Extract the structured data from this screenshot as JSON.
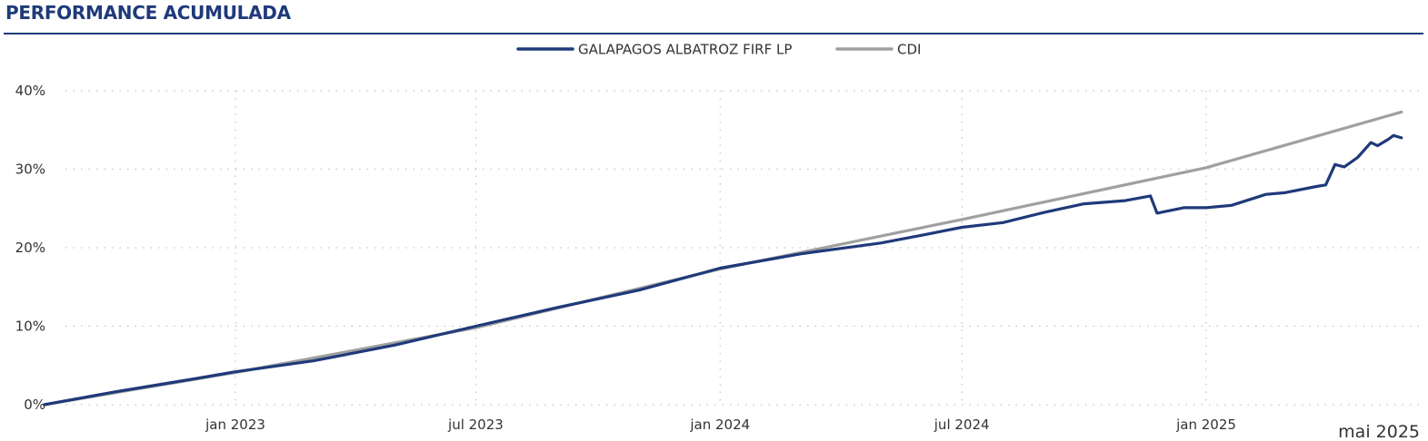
{
  "header": {
    "title": "PERFORMANCE ACUMULADA"
  },
  "colors": {
    "accent": "#1f3a7a",
    "fund": "#1f3a7a",
    "cdi": "#a0a0a0",
    "grid": "#c4c4c4"
  },
  "chart_data": {
    "type": "line",
    "title": "PERFORMANCE ACUMULADA",
    "xlabel": "",
    "ylabel": "",
    "ylim": [
      0,
      40
    ],
    "y_ticks": [
      "0%",
      "10%",
      "20%",
      "30%",
      "40%"
    ],
    "x_ticks": [
      "jan 2023",
      "jul 2023",
      "jan 2024",
      "jul 2024",
      "jan 2025"
    ],
    "x_end_label": "mai 2025",
    "x_range": [
      "2022-08-10",
      "2025-05-28"
    ],
    "grid": true,
    "legend_position": "top-center",
    "series": [
      {
        "name": "GALAPAGOS ALBATROZ FIRF LP",
        "color": "#1f3a7a",
        "points": [
          [
            "2022-08-10",
            0.0
          ],
          [
            "2022-10-01",
            1.6
          ],
          [
            "2022-12-01",
            3.3
          ],
          [
            "2023-01-01",
            4.2
          ],
          [
            "2023-03-01",
            5.6
          ],
          [
            "2023-05-01",
            7.6
          ],
          [
            "2023-07-01",
            10.0
          ],
          [
            "2023-09-01",
            12.4
          ],
          [
            "2023-11-01",
            14.6
          ],
          [
            "2024-01-01",
            17.4
          ],
          [
            "2024-03-01",
            19.2
          ],
          [
            "2024-05-01",
            20.6
          ],
          [
            "2024-06-01",
            21.6
          ],
          [
            "2024-07-01",
            22.6
          ],
          [
            "2024-08-01",
            23.2
          ],
          [
            "2024-09-01",
            24.5
          ],
          [
            "2024-10-01",
            25.6
          ],
          [
            "2024-11-01",
            26.0
          ],
          [
            "2024-11-20",
            26.6
          ],
          [
            "2024-11-25",
            24.4
          ],
          [
            "2024-12-15",
            25.1
          ],
          [
            "2025-01-01",
            25.1
          ],
          [
            "2025-01-20",
            25.4
          ],
          [
            "2025-02-15",
            26.8
          ],
          [
            "2025-03-01",
            27.0
          ],
          [
            "2025-03-25",
            27.8
          ],
          [
            "2025-04-01",
            28.0
          ],
          [
            "2025-04-08",
            30.6
          ],
          [
            "2025-04-15",
            30.3
          ],
          [
            "2025-04-25",
            31.5
          ],
          [
            "2025-05-05",
            33.4
          ],
          [
            "2025-05-10",
            33.0
          ],
          [
            "2025-05-18",
            33.8
          ],
          [
            "2025-05-22",
            34.3
          ],
          [
            "2025-05-28",
            34.0
          ]
        ]
      },
      {
        "name": "CDI",
        "color": "#a0a0a0",
        "points": [
          [
            "2022-08-10",
            0.0
          ],
          [
            "2023-01-01",
            4.1
          ],
          [
            "2023-07-01",
            9.8
          ],
          [
            "2024-01-01",
            17.3
          ],
          [
            "2024-07-01",
            23.6
          ],
          [
            "2025-01-01",
            30.2
          ],
          [
            "2025-05-28",
            37.3
          ]
        ]
      }
    ]
  }
}
